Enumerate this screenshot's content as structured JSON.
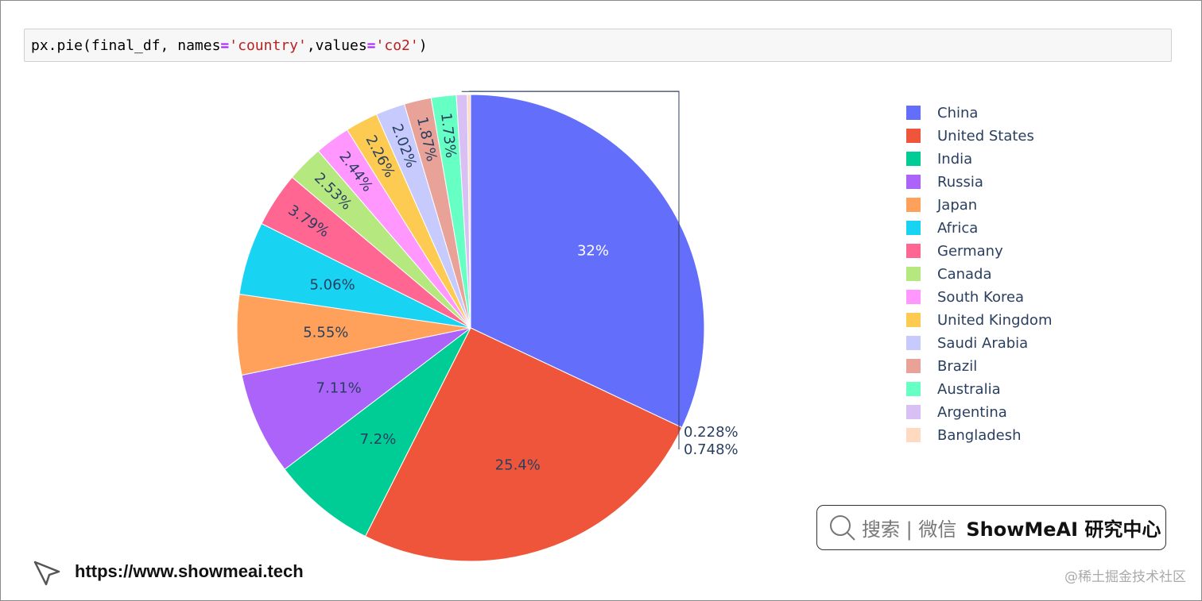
{
  "code_cell": {
    "prefix": "px.pie(final_df, names",
    "op1": "=",
    "str1": "'country'",
    "mid": ",values",
    "op2": "=",
    "str2": "'co2'",
    "suffix": ")"
  },
  "chart_data": {
    "type": "pie",
    "categories": [
      "China",
      "United States",
      "India",
      "Russia",
      "Japan",
      "Africa",
      "Germany",
      "Canada",
      "South Korea",
      "United Kingdom",
      "Saudi Arabia",
      "Brazil",
      "Australia",
      "Argentina",
      "Bangladesh"
    ],
    "labels": [
      "32%",
      "25.4%",
      "7.2%",
      "7.11%",
      "5.55%",
      "5.06%",
      "3.79%",
      "2.53%",
      "2.44%",
      "2.26%",
      "2.02%",
      "1.87%",
      "1.73%",
      "0.748%",
      "0.228%"
    ],
    "values": [
      32.0,
      25.4,
      7.2,
      7.11,
      5.55,
      5.06,
      3.79,
      2.53,
      2.44,
      2.26,
      2.02,
      1.87,
      1.73,
      0.748,
      0.228
    ],
    "colors": [
      "#636efa",
      "#EF553B",
      "#00cc96",
      "#ab63fa",
      "#FFA15A",
      "#19d3f3",
      "#FF6692",
      "#B6E880",
      "#FF97FF",
      "#FECB52",
      "#c6cafc",
      "#e8a298",
      "#66ffc4",
      "#d8c0f5",
      "#ffd9c0"
    ],
    "legend_position": "right",
    "title": ""
  },
  "watermark_box": {
    "label": "搜索 | 微信",
    "brand": "ShowMeAI 研究中心"
  },
  "site": {
    "url": "https://www.showmeai.tech"
  },
  "watermark": "@稀土掘金技术社区"
}
